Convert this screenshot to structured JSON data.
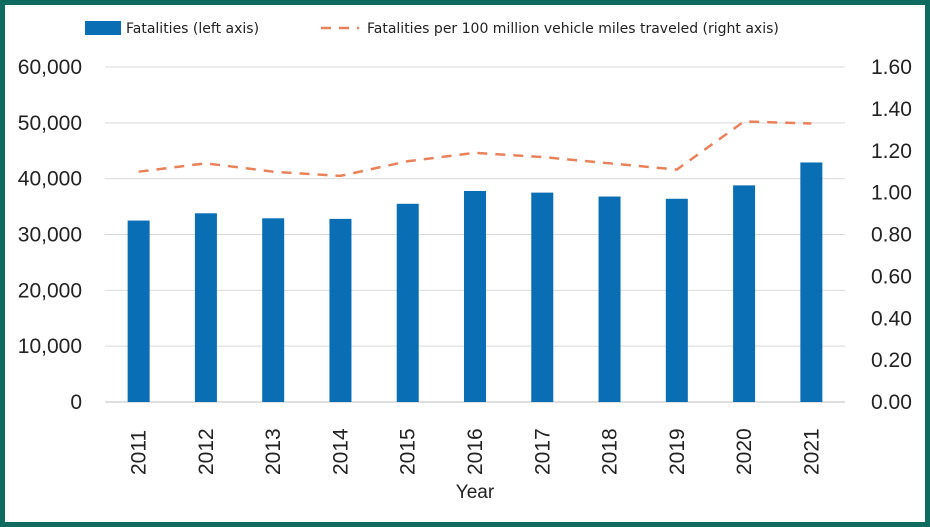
{
  "chart_data": {
    "type": "bar",
    "title": "",
    "categories": [
      "2011",
      "2012",
      "2013",
      "2014",
      "2015",
      "2016",
      "2017",
      "2018",
      "2019",
      "2020",
      "2021"
    ],
    "series": [
      {
        "name": "Fatalities (left axis)",
        "type": "bar",
        "axis": "left",
        "color": "#0a6eb4",
        "values": [
          32500,
          33800,
          32900,
          32800,
          35500,
          37800,
          37500,
          36800,
          36400,
          38800,
          42900
        ]
      },
      {
        "name": "Fatalities per 100 million vehicle miles traveled (right axis)",
        "type": "line",
        "axis": "right",
        "style": "dashed",
        "color": "#e8825a",
        "values": [
          1.1,
          1.14,
          1.1,
          1.08,
          1.15,
          1.19,
          1.17,
          1.14,
          1.11,
          1.34,
          1.33
        ]
      }
    ],
    "xlabel": "Year",
    "ylabel_left": "",
    "ylabel_right": "",
    "ylim_left": [
      0,
      60000
    ],
    "ylim_right": [
      0,
      1.6
    ],
    "yticks_left": [
      "0",
      "10,000",
      "20,000",
      "30,000",
      "40,000",
      "50,000",
      "60,000"
    ],
    "yticks_right": [
      "0.00",
      "0.20",
      "0.40",
      "0.60",
      "0.80",
      "1.00",
      "1.20",
      "1.40",
      "1.60"
    ],
    "grid": true,
    "legend": "top"
  },
  "colors": {
    "frame": "#0f6b5f",
    "grid": "#d9d9d9",
    "axis": "#bfbfbf"
  }
}
